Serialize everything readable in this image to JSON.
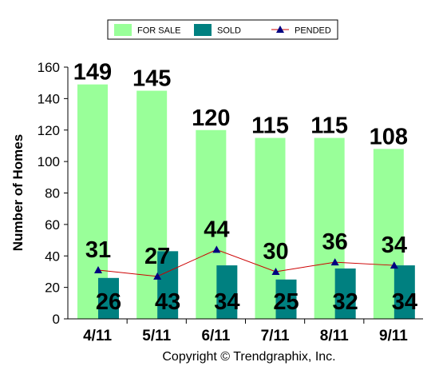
{
  "chart_data": {
    "type": "bar",
    "categories": [
      "4/11",
      "5/11",
      "6/11",
      "7/11",
      "8/11",
      "9/11"
    ],
    "series": [
      {
        "name": "FOR SALE",
        "type": "bar",
        "values": [
          149,
          145,
          120,
          115,
          115,
          108
        ],
        "color": "#99ff99"
      },
      {
        "name": "SOLD",
        "type": "bar",
        "values": [
          26,
          43,
          34,
          25,
          32,
          34
        ],
        "color": "#008080"
      },
      {
        "name": "PENDED",
        "type": "line",
        "values": [
          31,
          27,
          44,
          30,
          36,
          34
        ],
        "color": "#cc0000",
        "marker_color": "#000080"
      }
    ],
    "title": "",
    "xlabel": "",
    "ylabel": "Number of Homes",
    "ylim": [
      0,
      160
    ],
    "yticks": [
      0,
      20,
      40,
      60,
      80,
      100,
      120,
      140,
      160
    ],
    "legend": "top-center",
    "grid": false
  },
  "footer": {
    "copyright": "Copyright © Trendgraphix, Inc."
  }
}
